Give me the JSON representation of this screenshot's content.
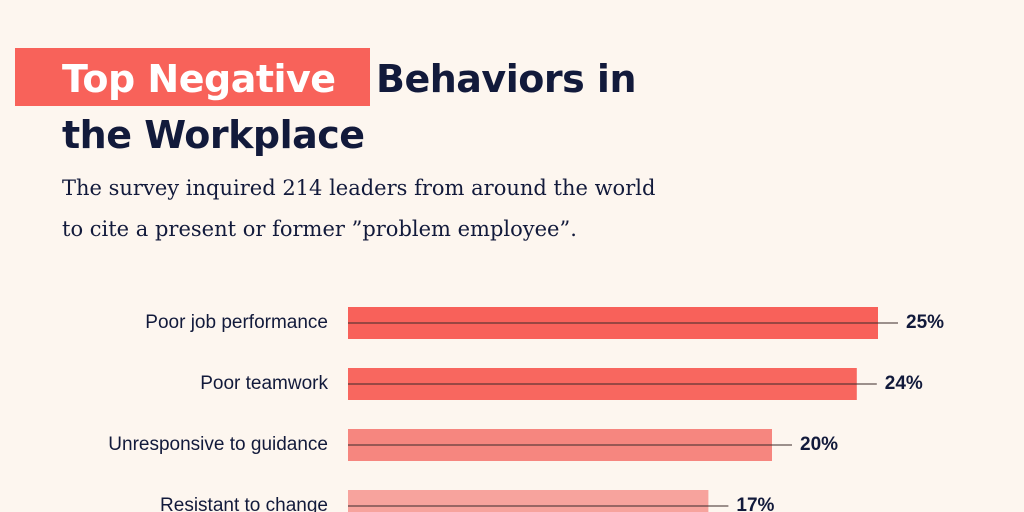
{
  "chart_data": {
    "type": "bar",
    "title": [
      "Top Negative",
      "Behaviors in",
      "the Workplace"
    ],
    "subtitle": [
      "The survey inquired 214 leaders from around the world",
      "to cite a present or former ”problem employee”."
    ],
    "categories": [
      "Poor job performance",
      "Poor teamwork",
      "Unresponsive to guidance",
      "Resistant to change"
    ],
    "values": [
      25,
      24,
      20,
      17
    ],
    "value_labels": [
      "25%",
      "24%",
      "20%",
      "17%"
    ],
    "colors": [
      "#f8615a",
      "#f8675f",
      "#f6867f",
      "#f7a39d"
    ]
  }
}
